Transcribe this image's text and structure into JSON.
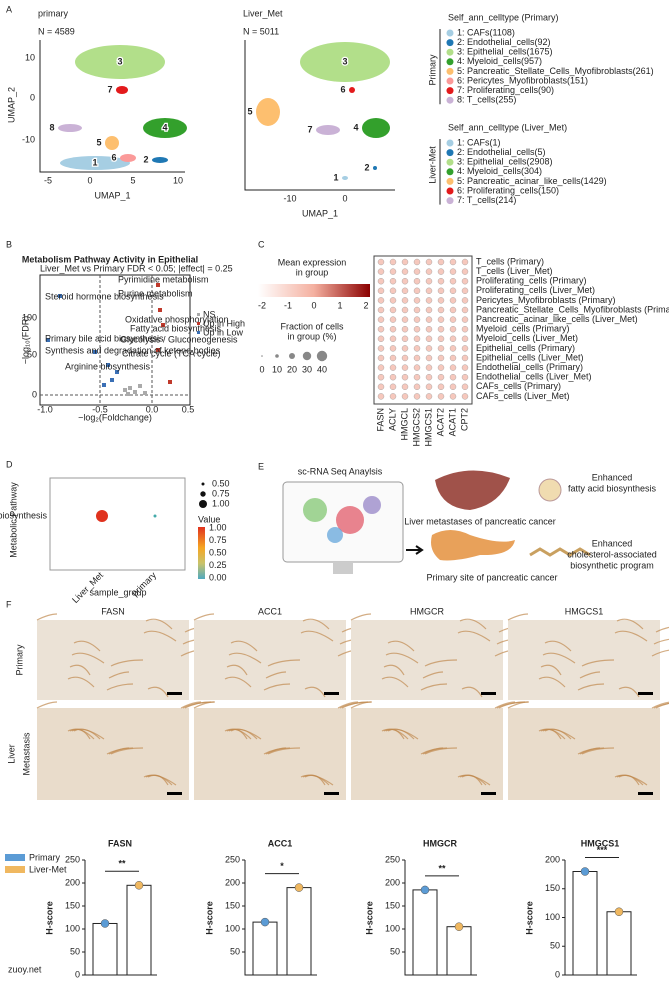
{
  "panel_labels": {
    "a": "A",
    "b": "B",
    "c": "C",
    "d": "D",
    "e": "E",
    "f": "F"
  },
  "umap": [
    {
      "title": "primary",
      "n": "N = 4589",
      "x_label": "UMAP_1",
      "y_label": "UMAP_2",
      "xticks": [
        "-5",
        "0",
        "5",
        "10"
      ],
      "yticks": [
        "10",
        "0",
        "-10"
      ],
      "clusters": [
        "3",
        "7",
        "4",
        "8",
        "5",
        "1",
        "6",
        "2"
      ]
    },
    {
      "title": "Liver_Met",
      "n": "N = 5011",
      "x_label": "UMAP_1",
      "xticks": [
        "-10",
        "0"
      ],
      "clusters": [
        "3",
        "6",
        "5",
        "7",
        "4",
        "1",
        "2"
      ]
    }
  ],
  "legend_primary": {
    "title": "Self_ann_celltype (Primary)",
    "group": "Primary",
    "items": [
      {
        "label": "1: CAFs(1108)",
        "color": "#a6cee3"
      },
      {
        "label": "2: Endothelial_cells(92)",
        "color": "#1f78b4"
      },
      {
        "label": "3: Epithelial_cells(1675)",
        "color": "#b2df8a"
      },
      {
        "label": "4: Myeloid_cells(957)",
        "color": "#33a02c"
      },
      {
        "label": "5: Pancreatic_Stellate_Cells_Myofibroblasts(261)",
        "color": "#fdbf6f"
      },
      {
        "label": "6: Pericytes_Myofibroblasts(151)",
        "color": "#fb9a99"
      },
      {
        "label": "7: Proliferating_cells(90)",
        "color": "#e31a1c"
      },
      {
        "label": "8: T_cells(255)",
        "color": "#cab2d6"
      }
    ]
  },
  "legend_liver": {
    "title": "Self_ann_celltype (Liver_Met)",
    "group": "Liver-Met",
    "items": [
      {
        "label": "1: CAFs(1)",
        "color": "#a6cee3"
      },
      {
        "label": "2: Endothelial_cells(5)",
        "color": "#1f78b4"
      },
      {
        "label": "3: Epithelial_cells(2908)",
        "color": "#b2df8a"
      },
      {
        "label": "4: Myeloid_cells(304)",
        "color": "#33a02c"
      },
      {
        "label": "5: Pancreatic_acinar_like_cells(1429)",
        "color": "#fdbf6f"
      },
      {
        "label": "6: Proliferating_cells(150)",
        "color": "#e31a1c"
      },
      {
        "label": "7: T_cells(214)",
        "color": "#cab2d6"
      }
    ]
  },
  "volcano": {
    "title": "Metabolism Pathway Activity in Epithelial",
    "subtitle": "Liver_Met vs Primary FDR < 0.05; |effect| = 0.25",
    "x_label": "−log₂(Foldchange)",
    "y_label": "−log₁₀(FDR)",
    "xticks": [
      "-1.0",
      "-0.5",
      "0.0",
      "0.5"
    ],
    "yticks": [
      "0",
      "50",
      "100"
    ],
    "annotations": [
      "Pyrimidine metabolism",
      "Steroid hormone biosynthesis",
      "Purine metabolism",
      "Oxidative phosphorylation",
      "Fatty acid biosynthesis",
      "Primary bile acid biosynthesis",
      "Glycolysis / Gluconeogenesis",
      "Synthesis and degradation of ketone bodies",
      "Citrate cycle (TCA cycle)",
      "Arginine biosynthesis"
    ],
    "legend": [
      "NS",
      "Up in High",
      "Up in Low"
    ]
  },
  "dotplot": {
    "mean_title": [
      "Mean expression",
      "in group"
    ],
    "mean_ticks": [
      "-2",
      "-1",
      "0",
      "1",
      "2"
    ],
    "frac_title": [
      "Fraction of cells",
      "in group (%)"
    ],
    "frac_ticks": [
      "0",
      "10",
      "20",
      "30",
      "40"
    ],
    "genes": [
      "FASN",
      "ACLY",
      "HMGCL",
      "HMGCS2",
      "HMGCS1",
      "ACAT2",
      "ACAT1",
      "CPT2"
    ],
    "rows": [
      "T_cells (Primary)",
      "T_cells (Liver_Met)",
      "Proliferating_cells (Primary)",
      "Proliferating_cells (Liver_Met)",
      "Pericytes_Myofibroblasts (Primary)",
      "Pancreatic_Stellate_Cells_Myofibroblasts (Primary)",
      "Pancreatic_acinar_like_cells (Liver_Met)",
      "Myeloid_cells (Primary)",
      "Myeloid_cells (Liver_Met)",
      "Epithelial_cells (Primary)",
      "Epithelial_cells (Liver_Met)",
      "Endothelial_cells (Primary)",
      "Endothelial_cells (Liver_Met)",
      "CAFs_cells (Primary)",
      "CAFs_cells (Liver_Met)"
    ]
  },
  "pathway_dot": {
    "y_label": "Metabolic Pathway",
    "category": "Fatty acid biosynthesis",
    "groups": [
      "Liver_Met",
      "primary"
    ],
    "x_label": "sample_group",
    "size_ticks": [
      "0.50",
      "0.75",
      "1.00"
    ],
    "color_title": "Value",
    "color_ticks": [
      "1.00",
      "0.75",
      "0.50",
      "0.25",
      "0.00"
    ]
  },
  "schematic": {
    "title": "sc-RNA Seq Anaylsis",
    "liver": "Liver metastases of pancreatic cancer",
    "primary": "Primary site of pancreatic cancer",
    "liver_result": [
      "Enhanced",
      "fatty acid biosynthesis"
    ],
    "primary_result": [
      "Enhanced",
      "cholesterol-associated",
      "biosynthetic program"
    ]
  },
  "ihc": {
    "columns": [
      "FASN",
      "ACC1",
      "HMGCR",
      "HMGCS1"
    ],
    "rows": [
      [
        "Primary"
      ],
      [
        "Liver",
        "Metastasis"
      ]
    ]
  },
  "chart_data": [
    {
      "type": "bar",
      "title": "FASN",
      "y_label": "H-score",
      "categories": [
        null
      ],
      "series": [
        {
          "name": "Primary",
          "color": "#5b9bd5",
          "values": [
            112
          ]
        },
        {
          "name": "Liver-Met",
          "color": "#f0b860",
          "values": [
            195
          ]
        }
      ],
      "ylim": [
        0,
        250
      ],
      "yticks": [
        0,
        50,
        100,
        150,
        200,
        250
      ],
      "significance": "**"
    },
    {
      "type": "bar",
      "title": "ACC1",
      "y_label": "H-score",
      "categories": [
        null
      ],
      "series": [
        {
          "name": "Primary",
          "color": "#5b9bd5",
          "values": [
            115
          ]
        },
        {
          "name": "Liver-Met",
          "color": "#f0b860",
          "values": [
            190
          ]
        }
      ],
      "ylim": [
        0,
        250
      ],
      "yticks": [
        50,
        100,
        150,
        200,
        250
      ],
      "significance": "*"
    },
    {
      "type": "bar",
      "title": "HMGCR",
      "y_label": "H-score",
      "categories": [
        null
      ],
      "series": [
        {
          "name": "Primary",
          "color": "#5b9bd5",
          "values": [
            185
          ]
        },
        {
          "name": "Liver-Met",
          "color": "#f0b860",
          "values": [
            105
          ]
        }
      ],
      "ylim": [
        0,
        250
      ],
      "yticks": [
        50,
        100,
        150,
        200,
        250
      ],
      "significance": "**"
    },
    {
      "type": "bar",
      "title": "HMGCS1",
      "y_label": "H-score",
      "categories": [
        null
      ],
      "series": [
        {
          "name": "Primary",
          "color": "#5b9bd5",
          "values": [
            180
          ]
        },
        {
          "name": "Liver-Met",
          "color": "#f0b860",
          "values": [
            110
          ]
        }
      ],
      "ylim": [
        0,
        200
      ],
      "yticks": [
        0,
        50,
        100,
        150,
        200
      ],
      "significance": "***"
    }
  ],
  "watermark": "zuoy.net"
}
